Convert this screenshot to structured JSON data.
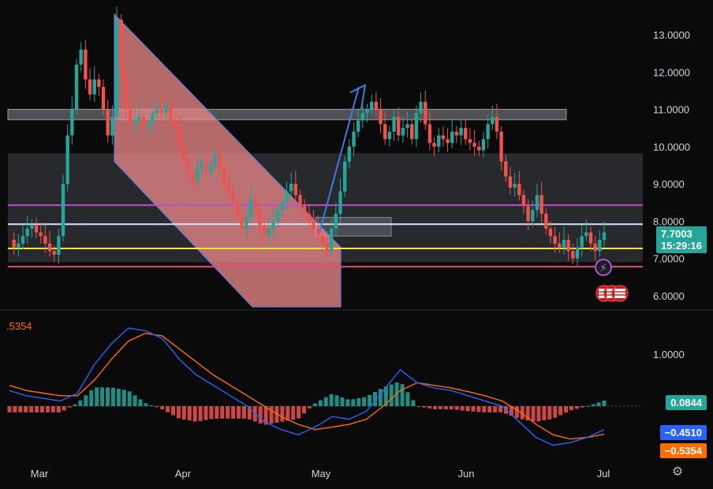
{
  "chart_data": [
    {
      "type": "candlestick",
      "y_ticks": [
        "13.0000",
        "12.0000",
        "11.0000",
        "10.0000",
        "9.0000",
        "8.0000",
        "7.0000",
        "6.0000"
      ],
      "ylim": [
        5.7,
        13.6
      ],
      "x_ticks": [
        "Mar",
        "Apr",
        "May",
        "Jun",
        "Jul"
      ],
      "last_price": "7.7003",
      "countdown": "15:29:16",
      "horizontal_levels": [
        {
          "value": 7.92,
          "color": "#d0e4ff"
        },
        {
          "value": 8.43,
          "color": "#c04fc7"
        },
        {
          "value": 7.27,
          "color": "#f5e642"
        },
        {
          "value": 6.78,
          "color": "#e8437a"
        }
      ],
      "zones": [
        {
          "from": 10.72,
          "to": 11.0,
          "color": "#8a8c93"
        },
        {
          "from": 6.9,
          "to": 9.82,
          "color": "#3b3d45"
        }
      ],
      "colors": {
        "up": "#26a69a",
        "down": "#ef5350",
        "channel": "#f08a8a",
        "arrow": "#3b7ddd"
      }
    },
    {
      "type": "macd",
      "y_ticks": [
        "1.0000"
      ],
      "macd_label": ".5354",
      "histogram_value": "0.0844",
      "macd_value": "−0.4510",
      "signal_value": "−0.5354",
      "colors": {
        "macd": "#2962ff",
        "signal": "#ff6d00",
        "hist_up": "#26a69a",
        "hist_down": "#ef5350"
      }
    }
  ]
}
